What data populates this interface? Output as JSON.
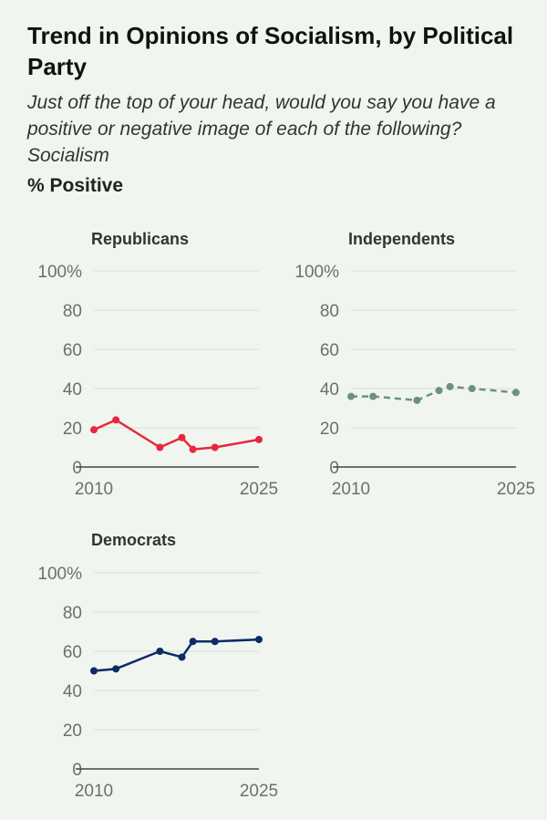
{
  "title": "Trend in Opinions of Socialism, by Political Party",
  "subtitle": "Just off the top of your head, would you say you have a positive or negative image of each of the following? Socialism",
  "measure": "% Positive",
  "chart_data": [
    {
      "type": "line",
      "title": "Republicans",
      "color": "#e8273d",
      "dashed": false,
      "x": [
        2010,
        2012,
        2016,
        2018,
        2019,
        2021,
        2025
      ],
      "values": [
        19,
        24,
        10,
        15,
        9,
        10,
        14
      ],
      "xlim": [
        2010,
        2025
      ],
      "ylim": [
        0,
        100
      ],
      "yticks": [
        0,
        20,
        40,
        60,
        80,
        100
      ],
      "ytick_labels": [
        "0",
        "20",
        "40",
        "60",
        "80",
        "100%"
      ],
      "xticks": [
        2010,
        2025
      ],
      "xtick_labels": [
        "2010",
        "2025"
      ]
    },
    {
      "type": "line",
      "title": "Independents",
      "color": "#6b9089",
      "dashed": true,
      "x": [
        2010,
        2012,
        2016,
        2018,
        2019,
        2021,
        2025
      ],
      "values": [
        36,
        36,
        34,
        39,
        41,
        40,
        38
      ],
      "xlim": [
        2010,
        2025
      ],
      "ylim": [
        0,
        100
      ],
      "yticks": [
        0,
        20,
        40,
        60,
        80,
        100
      ],
      "ytick_labels": [
        "0",
        "20",
        "40",
        "60",
        "80",
        "100%"
      ],
      "xticks": [
        2010,
        2025
      ],
      "xtick_labels": [
        "2010",
        "2025"
      ]
    },
    {
      "type": "line",
      "title": "Democrats",
      "color": "#0c2a66",
      "dashed": false,
      "x": [
        2010,
        2012,
        2016,
        2018,
        2019,
        2021,
        2025
      ],
      "values": [
        50,
        51,
        60,
        57,
        65,
        65,
        66
      ],
      "xlim": [
        2010,
        2025
      ],
      "ylim": [
        0,
        100
      ],
      "yticks": [
        0,
        20,
        40,
        60,
        80,
        100
      ],
      "ytick_labels": [
        "0",
        "20",
        "40",
        "60",
        "80",
        "100%"
      ],
      "xticks": [
        2010,
        2025
      ],
      "xtick_labels": [
        "2010",
        "2025"
      ]
    }
  ]
}
